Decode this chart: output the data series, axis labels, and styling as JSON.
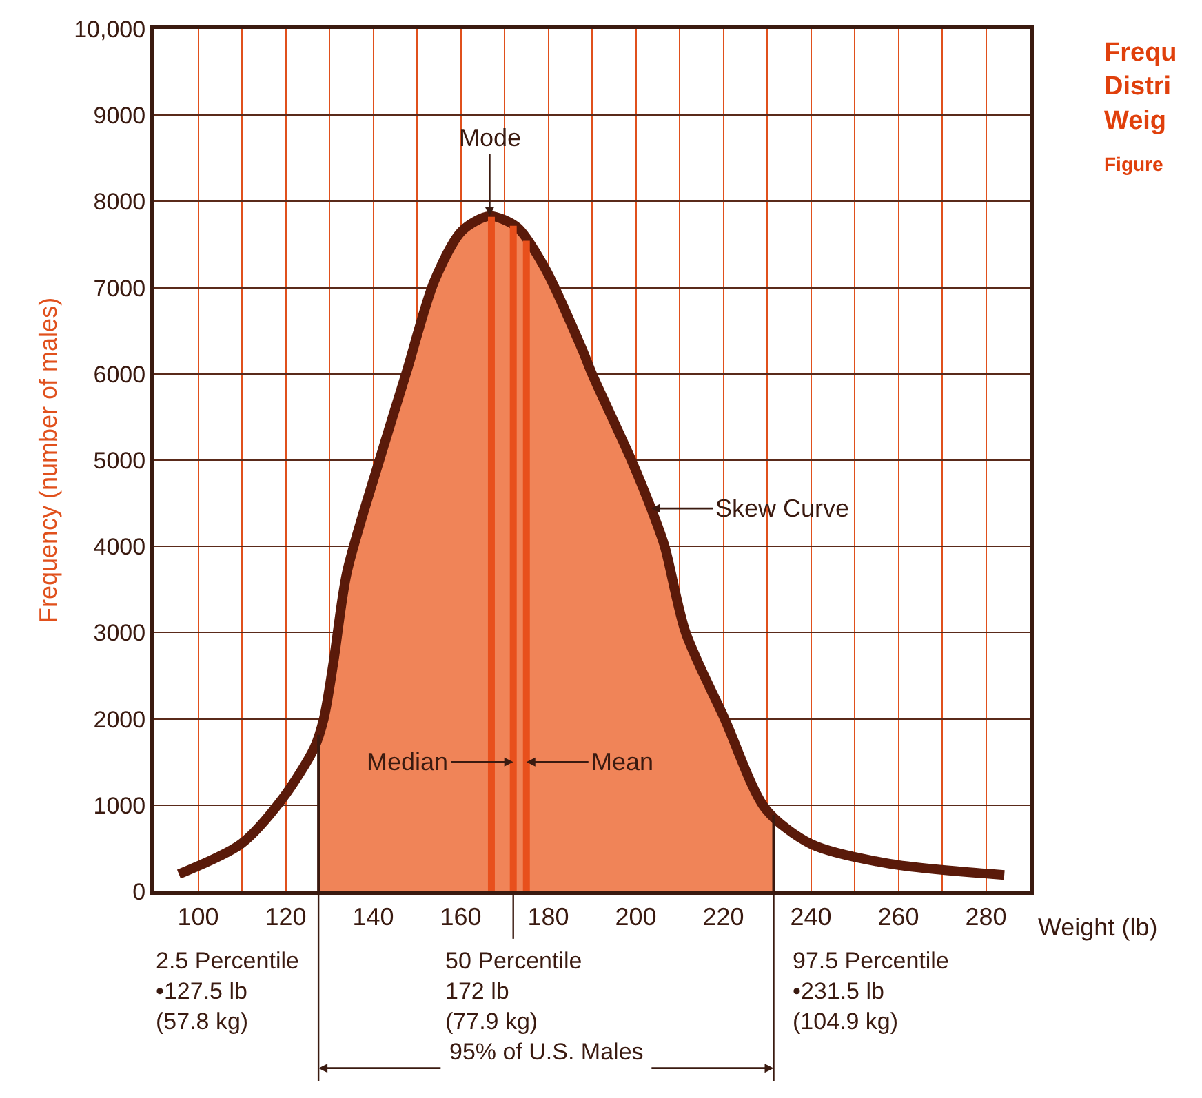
{
  "chart_data": {
    "type": "line",
    "title": "Frequ\nDistri\nWeig",
    "subtitle": "Figure",
    "xlabel": "Weight (lb)",
    "ylabel": "Frequency (number of males)",
    "x": [
      95.6,
      109.8,
      119.2,
      126.5,
      128.7,
      130.9,
      134,
      141.3,
      147.6,
      154,
      160.3,
      166.6,
      172.9,
      179.2,
      187.7,
      190,
      199,
      203.5,
      206.6,
      211.4,
      220.3,
      229.6,
      240,
      258,
      284.2
    ],
    "series": [
      {
        "type": "area",
        "color": "#f08458",
        "x": [
          127.5,
          128.7,
          130.9,
          134,
          141.3,
          147.6,
          154,
          160.3,
          166.6,
          172.9,
          179.2,
          187.7,
          190,
          199,
          203.5,
          206.6,
          211.4,
          220.3,
          229.6,
          231.5
        ],
        "values": [
          1800,
          2000,
          2650,
          3700,
          4980,
          6020,
          7080,
          7660,
          7830,
          7700,
          7230,
          6290,
          6000,
          5000,
          4440,
          4000,
          3000,
          2000,
          960,
          880
        ]
      },
      {
        "color": "#5a1a0a",
        "values": [
          200,
          550,
          1070,
          1660,
          2000,
          2650,
          3700,
          4980,
          6020,
          7080,
          7660,
          7830,
          7700,
          7230,
          6290,
          6000,
          5000,
          4440,
          4000,
          3000,
          2000,
          960,
          550,
          320,
          190
        ]
      }
    ],
    "xlim": [
      90,
      290
    ],
    "xticks": [
      {
        "value": 90,
        "label": null
      },
      100,
      {
        "value": 110,
        "label": null
      },
      120,
      {
        "value": 130,
        "label": null
      },
      140,
      {
        "value": 150,
        "label": null
      },
      160,
      {
        "value": 170,
        "label": null
      },
      180,
      {
        "value": 190,
        "label": null
      },
      200,
      {
        "value": 210,
        "label": null
      },
      220,
      {
        "value": 230,
        "label": null
      },
      240,
      {
        "value": 250,
        "label": null
      },
      260,
      {
        "value": 270,
        "label": null
      },
      280,
      {
        "value": 290,
        "label": null
      }
    ],
    "ylim": [
      0,
      10000
    ],
    "yticks": [
      0,
      1000,
      2000,
      3000,
      4000,
      5000,
      6000,
      7000,
      8000,
      9000,
      {
        "value": 10000,
        "label": "10,000"
      }
    ],
    "grid": true,
    "marker": "none",
    "line_style": "solid",
    "ref_lines": [
      {
        "axis": "x",
        "value": 127.5,
        "label": "2.5 Percentile\n•127.5 lb\n(57.8 kg)",
        "color": "#3a1a10"
      },
      {
        "axis": "x",
        "value": 167,
        "color": "#e8501c"
      },
      {
        "axis": "x",
        "value": 172,
        "label": "50 Percentile\n172 lb\n(77.9 kg)",
        "color": "#e8501c"
      },
      {
        "axis": "x",
        "value": 175,
        "color": "#e8501c"
      },
      {
        "axis": "x",
        "value": 231.5,
        "label": "97.5 Percentile\n•231.5 lb\n(104.9 kg)",
        "color": "#3a1a10"
      }
    ],
    "annotations": [
      {
        "text": "Mode",
        "x": 166.6,
        "y": 7830
      },
      {
        "text": "Median",
        "x": 172,
        "y": 1500
      },
      {
        "text": "Mean",
        "x": 175,
        "y": 1500
      },
      {
        "text": "Skew Curve",
        "x": 203.5,
        "y": 4440
      },
      "95% of U.S. Males"
    ]
  }
}
